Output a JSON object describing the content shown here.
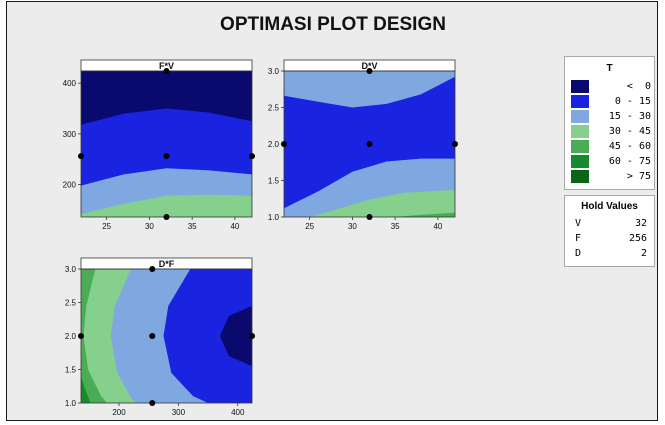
{
  "title": "OPTIMASI PLOT DESIGN",
  "legend": {
    "title": "T",
    "entries": [
      {
        "label": "   <  0",
        "color": "#0a0a6e"
      },
      {
        "label": " 0 - 15",
        "color": "#1a24e0"
      },
      {
        "label": "15 - 30",
        "color": "#7fa8e0"
      },
      {
        "label": "30 - 45",
        "color": "#86d08e"
      },
      {
        "label": "45 - 60",
        "color": "#4aad55"
      },
      {
        "label": "60 - 75",
        "color": "#178a2b"
      },
      {
        "label": "   > 75",
        "color": "#0b6418"
      }
    ]
  },
  "hold_values": {
    "title": "Hold Values",
    "items": [
      {
        "var": "V",
        "value": "32"
      },
      {
        "var": "F",
        "value": "256"
      },
      {
        "var": "D",
        "value": "2"
      }
    ]
  },
  "chart_data": [
    {
      "type": "heatmap",
      "title": "F*V",
      "xlabel": "",
      "ylabel": "",
      "x_ticks": [
        25,
        30,
        35,
        40
      ],
      "y_ticks": [
        200,
        300,
        400
      ],
      "xlim": [
        22,
        42
      ],
      "ylim": [
        136,
        424
      ],
      "design_points": [
        [
          22,
          256
        ],
        [
          42,
          256
        ],
        [
          32,
          256
        ],
        [
          32,
          136
        ],
        [
          32,
          424
        ]
      ],
      "contour_boundaries": [
        {
          "level": 0,
          "points": [
            [
              22,
              318
            ],
            [
              27,
              340
            ],
            [
              32,
              350
            ],
            [
              37,
              342
            ],
            [
              42,
              325
            ]
          ]
        },
        {
          "level": 15,
          "points": [
            [
              22,
              198
            ],
            [
              27,
              220
            ],
            [
              32,
              232
            ],
            [
              37,
              228
            ],
            [
              42,
              220
            ]
          ]
        },
        {
          "level": 30,
          "points": [
            [
              22,
              142
            ],
            [
              27,
              162
            ],
            [
              32,
              178
            ],
            [
              37,
              180
            ],
            [
              42,
              178
            ]
          ]
        }
      ]
    },
    {
      "type": "heatmap",
      "title": "D*V",
      "xlabel": "",
      "ylabel": "",
      "x_ticks": [
        25,
        30,
        35,
        40
      ],
      "y_ticks": [
        "1.0",
        "1.5",
        "2.0",
        "2.5",
        "3.0"
      ],
      "xlim": [
        22,
        42
      ],
      "ylim": [
        1.0,
        3.0
      ],
      "design_points": [
        [
          22,
          2.0
        ],
        [
          42,
          2.0
        ],
        [
          32,
          2.0
        ],
        [
          32,
          1.0
        ],
        [
          32,
          3.0
        ]
      ],
      "contour_boundaries": [
        {
          "level": 15,
          "points": [
            [
              22,
              2.66
            ],
            [
              26,
              2.58
            ],
            [
              30,
              2.5
            ],
            [
              34,
              2.55
            ],
            [
              38,
              2.68
            ],
            [
              40,
              2.8
            ],
            [
              42,
              2.92
            ]
          ]
        },
        {
          "level": 15,
          "points": [
            [
              22,
              1.12
            ],
            [
              26,
              1.35
            ],
            [
              30,
              1.62
            ],
            [
              34,
              1.76
            ],
            [
              38,
              1.8
            ],
            [
              42,
              1.8
            ]
          ]
        },
        {
          "level": 30,
          "points": [
            [
              25,
              1.0
            ],
            [
              28,
              1.1
            ],
            [
              32,
              1.24
            ],
            [
              36,
              1.33
            ],
            [
              40,
              1.36
            ],
            [
              42,
              1.37
            ]
          ]
        },
        {
          "level": 45,
          "points": [
            [
              35,
              1.0
            ],
            [
              38,
              1.03
            ],
            [
              42,
              1.06
            ]
          ]
        }
      ]
    },
    {
      "type": "heatmap",
      "title": "D*F",
      "xlabel": "",
      "ylabel": "",
      "x_ticks": [
        200,
        300,
        400
      ],
      "y_ticks": [
        "1.0",
        "1.5",
        "2.0",
        "2.5",
        "3.0"
      ],
      "xlim": [
        136,
        424
      ],
      "ylim": [
        1.0,
        3.0
      ],
      "design_points": [
        [
          136,
          2.0
        ],
        [
          424,
          2.0
        ],
        [
          256,
          2.0
        ],
        [
          256,
          1.0
        ],
        [
          256,
          3.0
        ]
      ],
      "contour_boundaries": [
        {
          "level": 0,
          "points": [
            [
              424,
              2.45
            ],
            [
              385,
              2.3
            ],
            [
              370,
              2.0
            ],
            [
              385,
              1.7
            ],
            [
              424,
              1.55
            ]
          ]
        },
        {
          "level": 15,
          "points": [
            [
              320,
              3.0
            ],
            [
              283,
              2.45
            ],
            [
              275,
              2.0
            ],
            [
              288,
              1.45
            ],
            [
              325,
              1.1
            ],
            [
              350,
              1.0
            ]
          ]
        },
        {
          "level": 30,
          "points": [
            [
              220,
              3.0
            ],
            [
              193,
              2.45
            ],
            [
              186,
              2.0
            ],
            [
              197,
              1.45
            ],
            [
              222,
              1.05
            ],
            [
              230,
              1.0
            ]
          ]
        },
        {
          "level": 45,
          "points": [
            [
              160,
              3.0
            ],
            [
              145,
              2.45
            ],
            [
              140,
              2.0
            ],
            [
              148,
              1.5
            ],
            [
              170,
              1.1
            ],
            [
              180,
              1.0
            ]
          ]
        },
        {
          "level": 60,
          "points": [
            [
              136,
              1.4
            ],
            [
              143,
              1.2
            ],
            [
              152,
              1.0
            ]
          ]
        }
      ]
    }
  ]
}
